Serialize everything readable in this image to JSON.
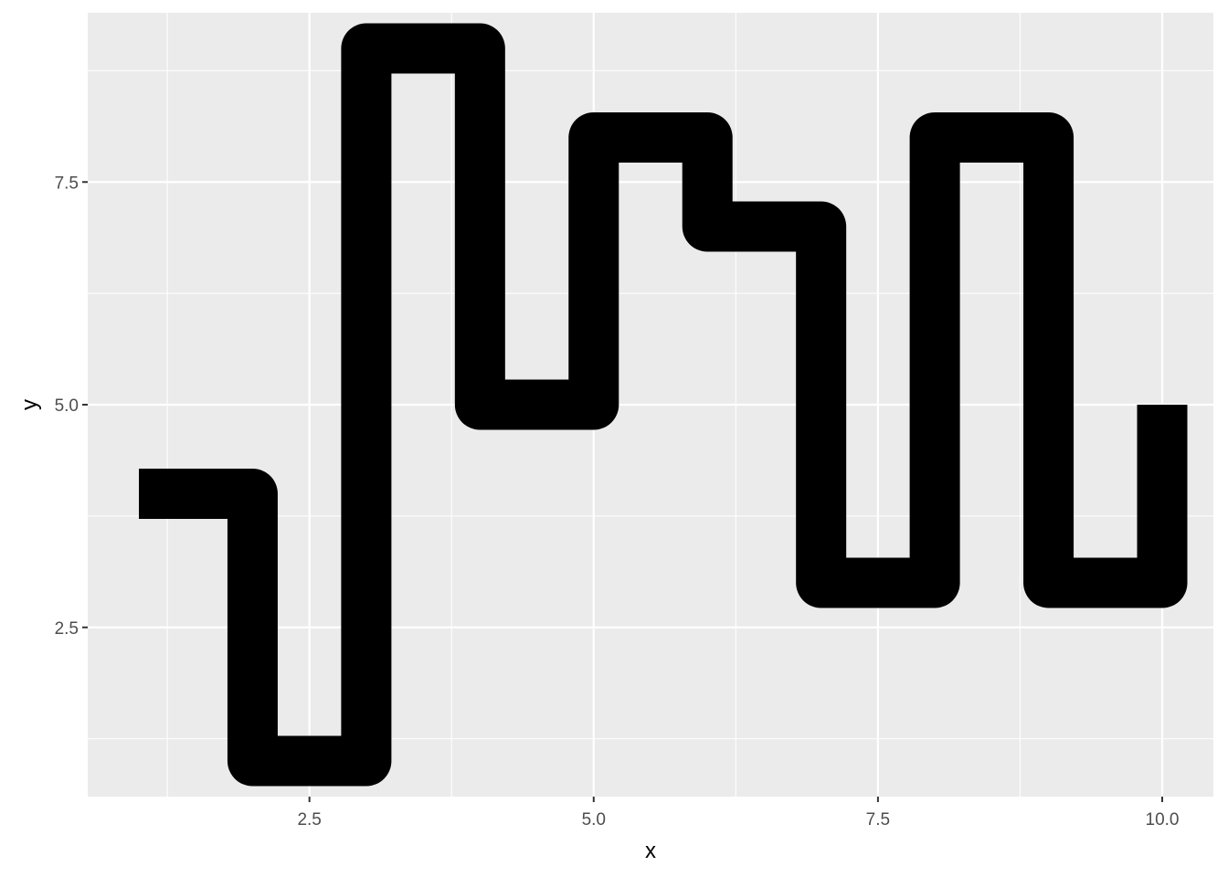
{
  "chart_data": {
    "type": "line",
    "geom": "step",
    "title": "",
    "xlabel": "x",
    "ylabel": "y",
    "x": [
      1,
      2,
      3,
      4,
      5,
      6,
      7,
      8,
      9,
      10
    ],
    "y": [
      4,
      1,
      9,
      5,
      8,
      7,
      3,
      8,
      3,
      5
    ],
    "xlim": [
      0.55,
      10.45
    ],
    "ylim": [
      0.6,
      9.4
    ],
    "x_ticks": [
      2.5,
      5.0,
      7.5,
      10.0
    ],
    "x_tick_labels": [
      "2.5",
      "5.0",
      "7.5",
      "10.0"
    ],
    "y_ticks": [
      2.5,
      5.0,
      7.5
    ],
    "y_tick_labels": [
      "2.5",
      "5.0",
      "7.5"
    ],
    "grid": true,
    "legend": "none",
    "colors": {
      "panel": "#ebebeb",
      "grid": "#ffffff",
      "line": "#000000",
      "tick_text": "#4d4d4d"
    }
  }
}
